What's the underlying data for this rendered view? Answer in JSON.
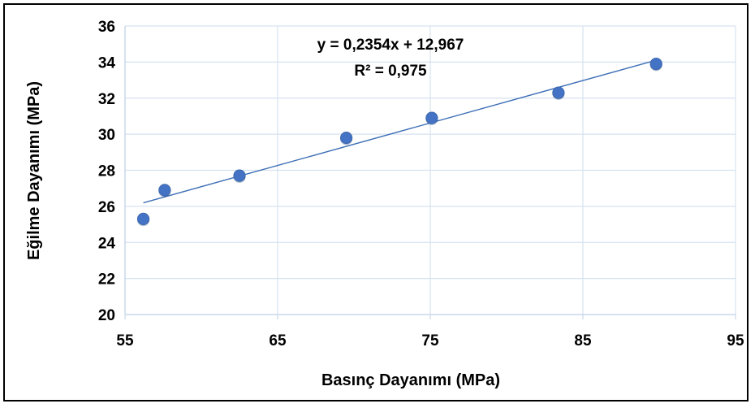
{
  "chart_data": {
    "type": "scatter",
    "title": "",
    "xlabel": "Basınç Dayanımı (MPa)",
    "ylabel": "Eğilme Dayanımı (MPa)",
    "xlim": [
      55,
      95
    ],
    "ylim": [
      20,
      36
    ],
    "x_ticks": [
      55,
      65,
      75,
      85,
      95
    ],
    "y_ticks": [
      20,
      22,
      24,
      26,
      28,
      30,
      32,
      34,
      36
    ],
    "x_tick_labels": [
      "55",
      "65",
      "75",
      "85",
      "95"
    ],
    "y_tick_labels": [
      "20",
      "22",
      "24",
      "26",
      "28",
      "30",
      "32",
      "34",
      "36"
    ],
    "grid": true,
    "legend": "none",
    "series": [
      {
        "x": [
          56.2,
          57.6,
          62.5,
          69.5,
          75.1,
          83.4,
          89.8
        ],
        "y": [
          25.3,
          26.9,
          27.7,
          29.8,
          30.9,
          32.3,
          33.9
        ],
        "color": "#4472C4"
      }
    ],
    "trendline": {
      "type": "linear",
      "slope": 0.2354,
      "intercept": 12.967,
      "x_range": [
        56.2,
        89.8
      ],
      "color": "#3E6FB6",
      "equation_label": "y = 0,2354x + 12,967",
      "r2_label": "R² = 0,975"
    }
  }
}
